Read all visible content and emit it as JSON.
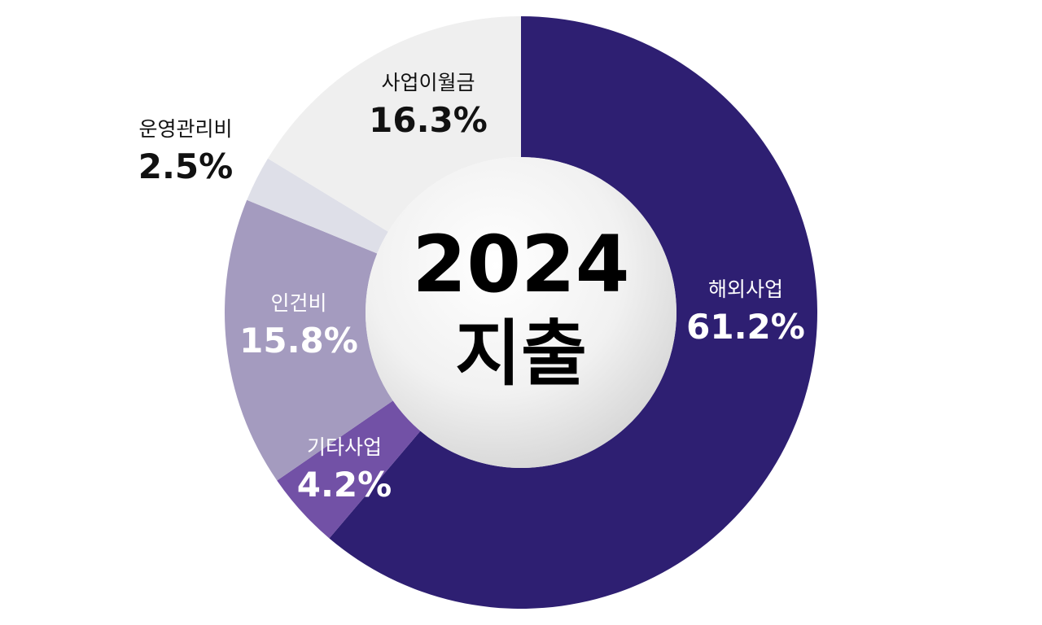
{
  "chart_data": {
    "type": "pie",
    "title": "2024 지출",
    "center_label": {
      "line1": "2024",
      "line2": "지출"
    },
    "unit": "%",
    "slices": [
      {
        "label": "해외사업",
        "value": 61.2,
        "value_text": "61.2%",
        "color": "#2e1f72",
        "text_color": "#ffffff"
      },
      {
        "label": "기타사업",
        "value": 4.2,
        "value_text": "4.2%",
        "color": "#7251a6",
        "text_color": "#ffffff"
      },
      {
        "label": "인건비",
        "value": 15.8,
        "value_text": "15.8%",
        "color": "#a49bbf",
        "text_color": "#ffffff"
      },
      {
        "label": "운영관리비",
        "value": 2.5,
        "value_text": "2.5%",
        "color": "#dedfe8",
        "text_color": "#111111"
      },
      {
        "label": "사업이월금",
        "value": 16.3,
        "value_text": "16.3%",
        "color": "#efefef",
        "text_color": "#111111"
      }
    ]
  }
}
